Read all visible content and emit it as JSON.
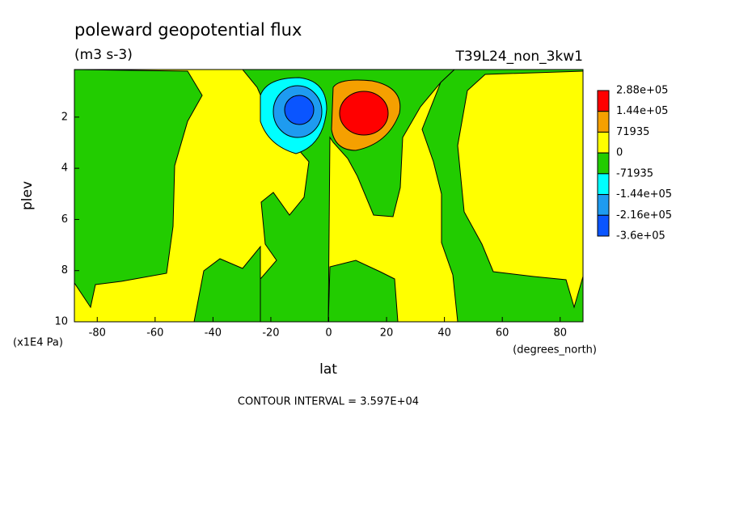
{
  "chart_data": {
    "type": "contour",
    "title": "poleward geopotential flux",
    "units": "(m3 s-3)",
    "dataset": "T39L24_non_3kw1",
    "x_label": "lat",
    "x_units": "(degrees_north)",
    "y_label": "plev",
    "y_units": "(x1E4 Pa)",
    "note": "CONTOUR INTERVAL = 3.597E+04",
    "xlim": [
      -87.9,
      87.9
    ],
    "xticks": [
      -80,
      -60,
      -40,
      -20,
      0,
      20,
      40,
      60,
      80
    ],
    "ylim": [
      10,
      0.14
    ],
    "yticks": [
      2,
      4,
      6,
      8,
      10
    ],
    "colorbar": {
      "levels": [
        {
          "value": 288000,
          "label": "2.88e+05"
        },
        {
          "value": 144000,
          "label": "1.44e+05"
        },
        71935,
        0,
        -71935,
        {
          "value": -144000,
          "label": "-1.44e+05"
        },
        {
          "value": -216000,
          "label": "-2.16e+05"
        },
        {
          "value": -360000,
          "label": "-3.6e+05"
        }
      ],
      "colors": [
        "#ff0000",
        "#f5a000",
        "#ffff00",
        "#22cc00",
        "#00ffff",
        "#1e9bf0",
        "#0a55ff"
      ]
    }
  }
}
